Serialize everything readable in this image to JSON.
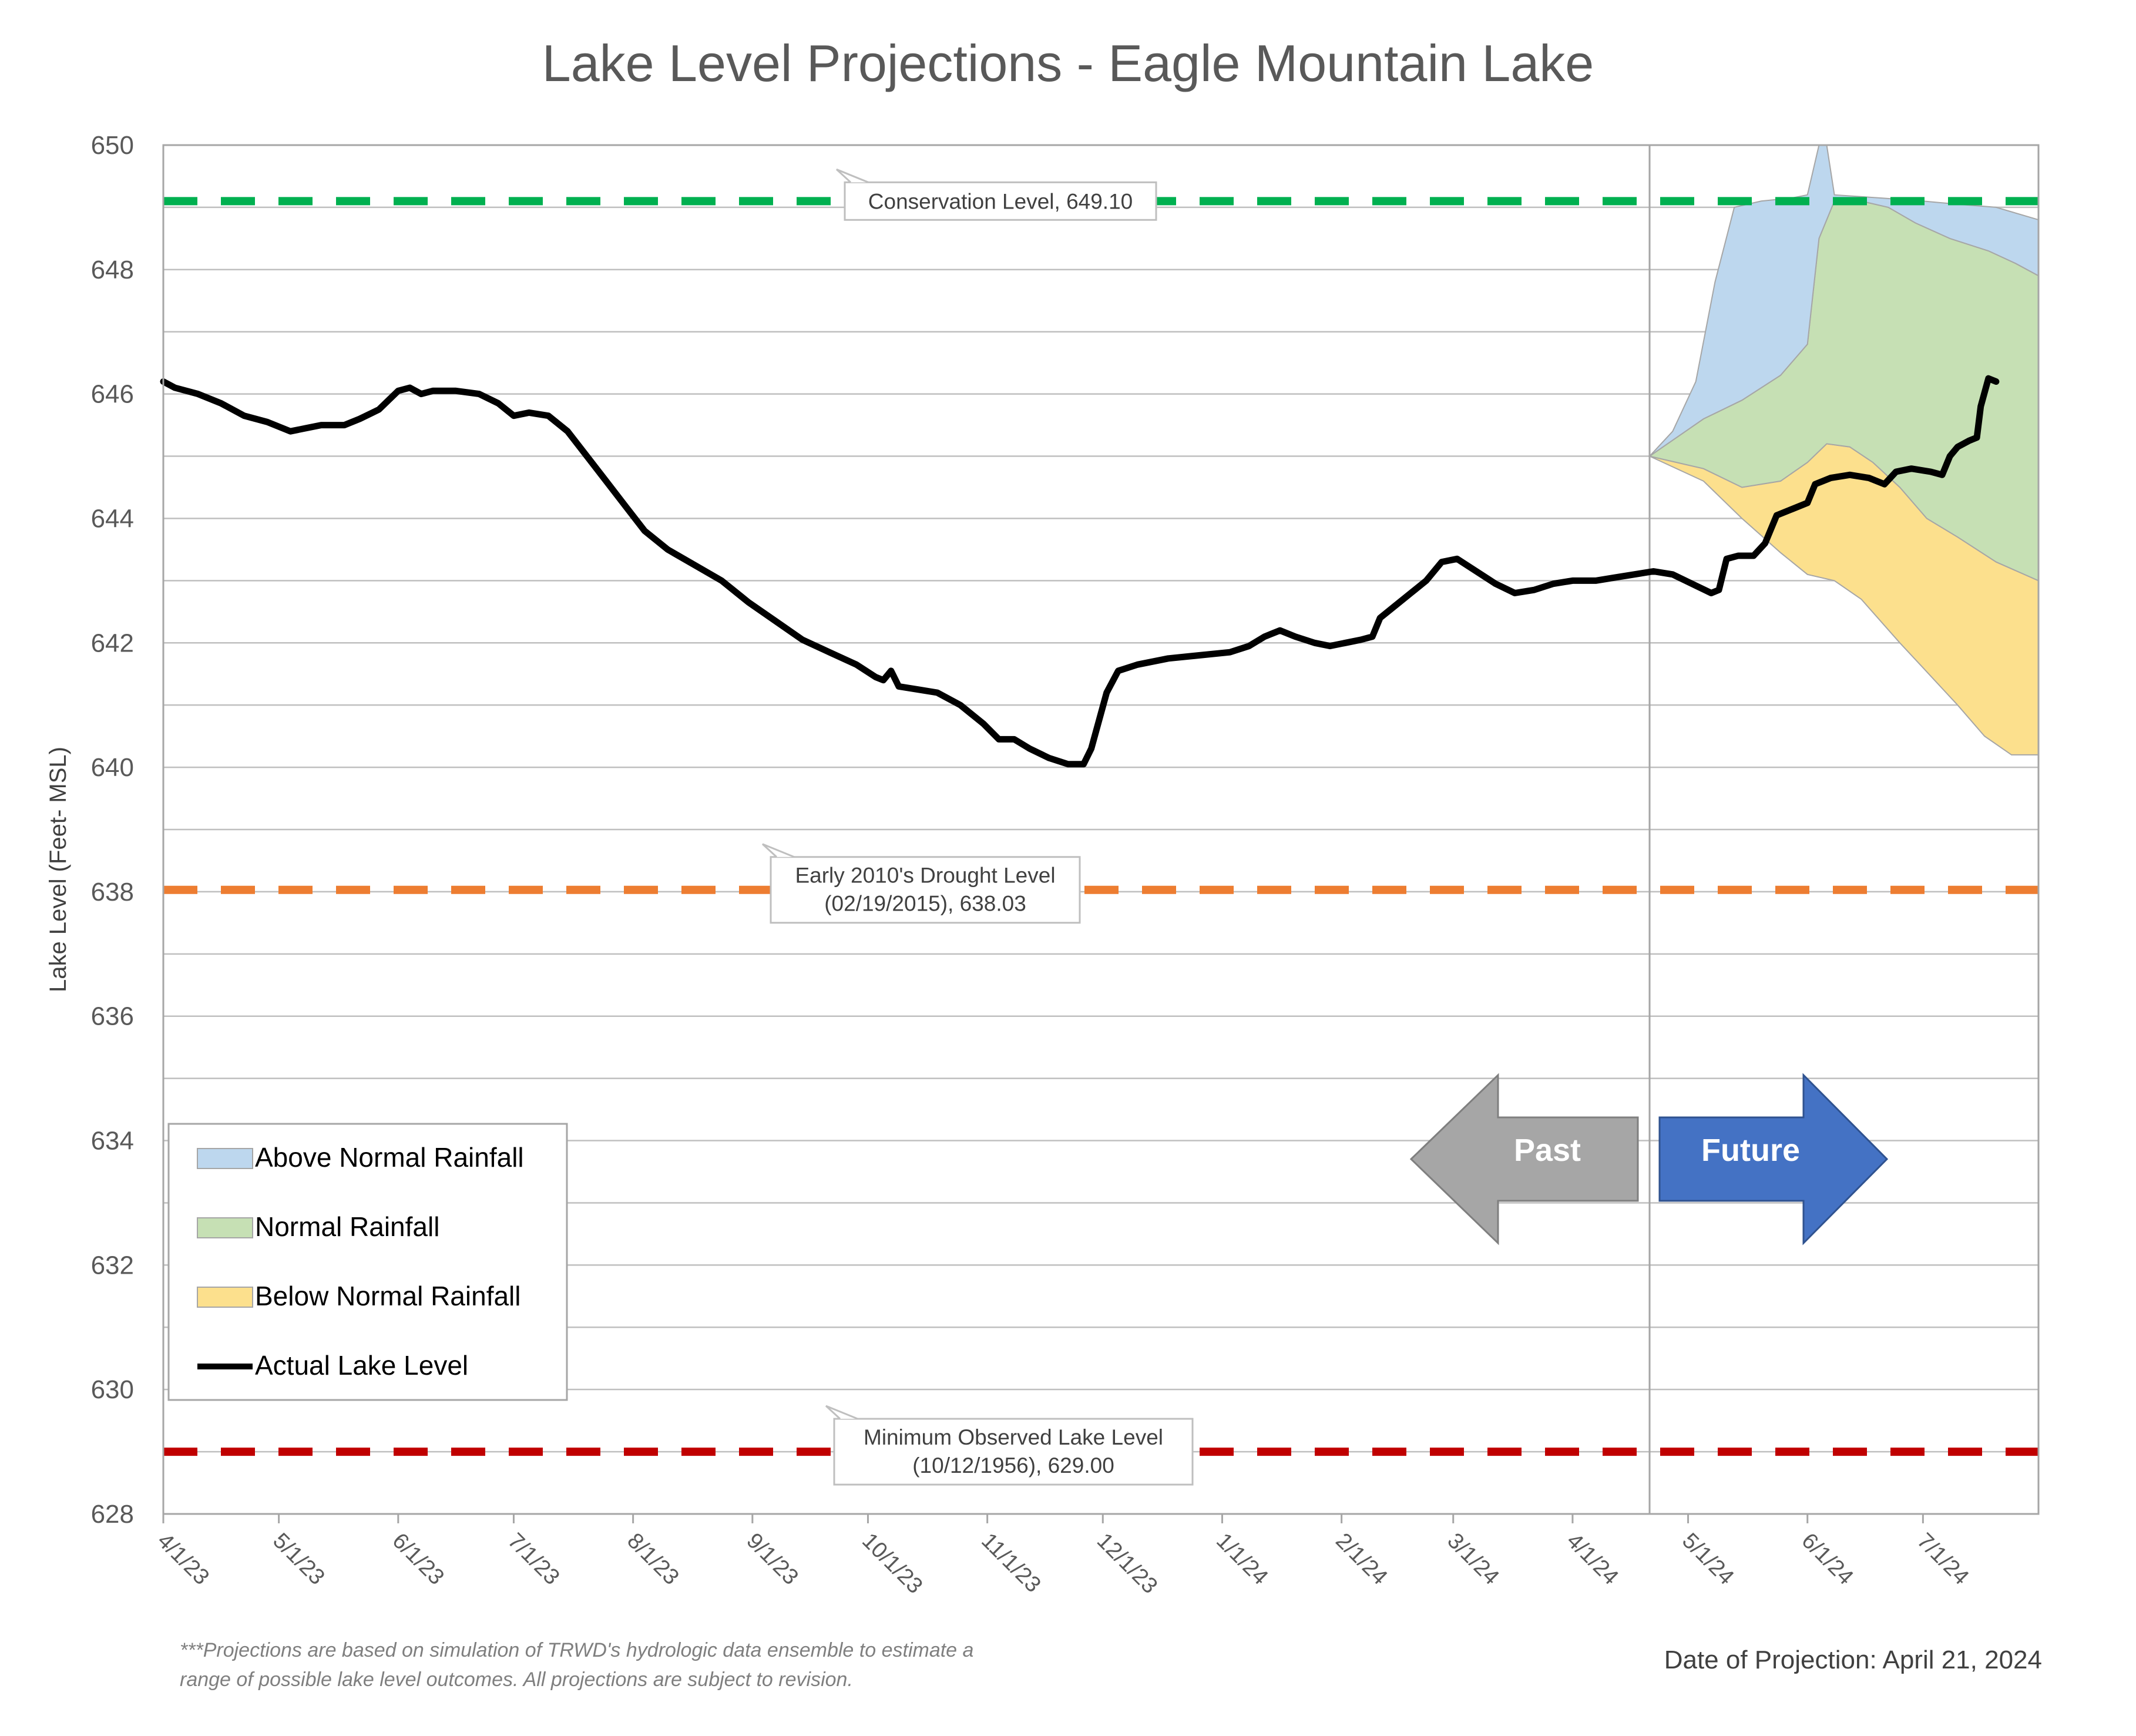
{
  "chart_data": {
    "type": "area",
    "title": "Lake Level Projections - Eagle Mountain Lake",
    "ylabel": "Lake Level (Feet- MSL)",
    "xlabel": "",
    "ylim": [
      628,
      650
    ],
    "y_ticks": [
      "628",
      "630",
      "632",
      "634",
      "636",
      "638",
      "640",
      "642",
      "644",
      "646",
      "648",
      "650"
    ],
    "x_range": [
      "2023-04-01",
      "2024-07-31"
    ],
    "x_ticks": [
      {
        "label": "4/1/23",
        "date": "2023-04-01"
      },
      {
        "label": "5/1/23",
        "date": "2023-05-01"
      },
      {
        "label": "6/1/23",
        "date": "2023-06-01"
      },
      {
        "label": "7/1/23",
        "date": "2023-07-01"
      },
      {
        "label": "8/1/23",
        "date": "2023-08-01"
      },
      {
        "label": "9/1/23",
        "date": "2023-09-01"
      },
      {
        "label": "10/1/23",
        "date": "2023-10-01"
      },
      {
        "label": "11/1/23",
        "date": "2023-11-01"
      },
      {
        "label": "12/1/23",
        "date": "2023-12-01"
      },
      {
        "label": "1/1/24",
        "date": "2024-01-01"
      },
      {
        "label": "2/1/24",
        "date": "2024-02-01"
      },
      {
        "label": "3/1/24",
        "date": "2024-03-01"
      },
      {
        "label": "4/1/24",
        "date": "2024-04-01"
      },
      {
        "label": "5/1/24",
        "date": "2024-05-01"
      },
      {
        "label": "6/1/24",
        "date": "2024-06-01"
      },
      {
        "label": "7/1/24",
        "date": "2024-07-01"
      }
    ],
    "grid": true,
    "grid_step": 1,
    "legend_position": "lower-left",
    "reference_lines": [
      {
        "name": "Conservation Level",
        "value": 649.1,
        "color": "#00b050",
        "label_lines": [
          "Conservation Level, 649.10"
        ]
      },
      {
        "name": "Early 2010's Drought Level",
        "value": 638.03,
        "color": "#ed7d31",
        "label_lines": [
          "Early 2010's Drought Level",
          "(02/19/2015), 638.03"
        ]
      },
      {
        "name": "Minimum Observed Lake Level",
        "value": 629.0,
        "color": "#c00000",
        "label_lines": [
          "Minimum Observed Lake Level",
          "(10/12/1956), 629.00"
        ]
      }
    ],
    "projection_start": "2024-04-21",
    "series": [
      {
        "name": "Actual Lake Level",
        "kind": "line",
        "color": "#000000",
        "points": [
          [
            "2023-04-01",
            646.2
          ],
          [
            "2023-04-04",
            646.1
          ],
          [
            "2023-04-10",
            646.0
          ],
          [
            "2023-04-16",
            645.85
          ],
          [
            "2023-04-22",
            645.65
          ],
          [
            "2023-04-28",
            645.55
          ],
          [
            "2023-05-04",
            645.4
          ],
          [
            "2023-05-08",
            645.45
          ],
          [
            "2023-05-12",
            645.5
          ],
          [
            "2023-05-18",
            645.5
          ],
          [
            "2023-05-22",
            645.6
          ],
          [
            "2023-05-27",
            645.75
          ],
          [
            "2023-06-01",
            646.05
          ],
          [
            "2023-06-04",
            646.1
          ],
          [
            "2023-06-07",
            646.0
          ],
          [
            "2023-06-10",
            646.05
          ],
          [
            "2023-06-16",
            646.05
          ],
          [
            "2023-06-22",
            646.0
          ],
          [
            "2023-06-27",
            645.85
          ],
          [
            "2023-07-01",
            645.65
          ],
          [
            "2023-07-05",
            645.7
          ],
          [
            "2023-07-10",
            645.65
          ],
          [
            "2023-07-15",
            645.4
          ],
          [
            "2023-07-20",
            645.0
          ],
          [
            "2023-07-25",
            644.6
          ],
          [
            "2023-07-30",
            644.2
          ],
          [
            "2023-08-04",
            643.8
          ],
          [
            "2023-08-10",
            643.5
          ],
          [
            "2023-08-17",
            643.25
          ],
          [
            "2023-08-24",
            643.0
          ],
          [
            "2023-08-31",
            642.65
          ],
          [
            "2023-09-07",
            642.35
          ],
          [
            "2023-09-14",
            642.05
          ],
          [
            "2023-09-21",
            641.85
          ],
          [
            "2023-09-28",
            641.65
          ],
          [
            "2023-10-03",
            641.45
          ],
          [
            "2023-10-05",
            641.4
          ],
          [
            "2023-10-07",
            641.55
          ],
          [
            "2023-10-09",
            641.3
          ],
          [
            "2023-10-14",
            641.25
          ],
          [
            "2023-10-19",
            641.2
          ],
          [
            "2023-10-25",
            641.0
          ],
          [
            "2023-10-31",
            640.7
          ],
          [
            "2023-11-04",
            640.45
          ],
          [
            "2023-11-08",
            640.45
          ],
          [
            "2023-11-12",
            640.3
          ],
          [
            "2023-11-17",
            640.15
          ],
          [
            "2023-11-22",
            640.05
          ],
          [
            "2023-11-26",
            640.05
          ],
          [
            "2023-11-28",
            640.3
          ],
          [
            "2023-11-30",
            640.75
          ],
          [
            "2023-12-02",
            641.2
          ],
          [
            "2023-12-05",
            641.55
          ],
          [
            "2023-12-10",
            641.65
          ],
          [
            "2023-12-18",
            641.75
          ],
          [
            "2023-12-26",
            641.8
          ],
          [
            "2024-01-03",
            641.85
          ],
          [
            "2024-01-08",
            641.95
          ],
          [
            "2024-01-12",
            642.1
          ],
          [
            "2024-01-16",
            642.2
          ],
          [
            "2024-01-20",
            642.1
          ],
          [
            "2024-01-25",
            642.0
          ],
          [
            "2024-01-29",
            641.95
          ],
          [
            "2024-02-02",
            642.0
          ],
          [
            "2024-02-06",
            642.05
          ],
          [
            "2024-02-09",
            642.1
          ],
          [
            "2024-02-11",
            642.4
          ],
          [
            "2024-02-15",
            642.6
          ],
          [
            "2024-02-19",
            642.8
          ],
          [
            "2024-02-23",
            643.0
          ],
          [
            "2024-02-27",
            643.3
          ],
          [
            "2024-03-02",
            643.35
          ],
          [
            "2024-03-07",
            643.15
          ],
          [
            "2024-03-12",
            642.95
          ],
          [
            "2024-03-17",
            642.8
          ],
          [
            "2024-03-22",
            642.85
          ],
          [
            "2024-03-27",
            642.95
          ],
          [
            "2024-04-01",
            643.0
          ],
          [
            "2024-04-07",
            643.0
          ],
          [
            "2024-04-12",
            643.05
          ],
          [
            "2024-04-17",
            643.1
          ],
          [
            "2024-04-22",
            643.15
          ],
          [
            "2024-04-27",
            643.1
          ],
          [
            "2024-05-02",
            642.95
          ],
          [
            "2024-05-07",
            642.8
          ],
          [
            "2024-05-09",
            642.85
          ],
          [
            "2024-05-11",
            643.35
          ],
          [
            "2024-05-14",
            643.4
          ],
          [
            "2024-05-18",
            643.4
          ],
          [
            "2024-05-21",
            643.6
          ],
          [
            "2024-05-24",
            644.05
          ],
          [
            "2024-05-28",
            644.15
          ],
          [
            "2024-06-01",
            644.25
          ],
          [
            "2024-06-03",
            644.55
          ],
          [
            "2024-06-07",
            644.65
          ],
          [
            "2024-06-12",
            644.7
          ],
          [
            "2024-06-17",
            644.65
          ],
          [
            "2024-06-21",
            644.55
          ],
          [
            "2024-06-24",
            644.75
          ],
          [
            "2024-06-28",
            644.8
          ],
          [
            "2024-07-03",
            644.75
          ],
          [
            "2024-07-06",
            644.7
          ],
          [
            "2024-07-08",
            645.0
          ],
          [
            "2024-07-10",
            645.15
          ],
          [
            "2024-07-13",
            645.25
          ],
          [
            "2024-07-15",
            645.3
          ],
          [
            "2024-07-16",
            645.8
          ],
          [
            "2024-07-18",
            646.25
          ],
          [
            "2024-07-20",
            646.2
          ]
        ]
      },
      {
        "name": "Below Normal Rainfall",
        "kind": "band",
        "color": "#fce08d",
        "lower": [
          [
            "2024-04-21",
            645.0
          ],
          [
            "2024-05-05",
            644.6
          ],
          [
            "2024-05-15",
            644.0
          ],
          [
            "2024-05-25",
            643.45
          ],
          [
            "2024-06-01",
            643.1
          ],
          [
            "2024-06-08",
            643.0
          ],
          [
            "2024-06-15",
            642.7
          ],
          [
            "2024-06-25",
            642.0
          ],
          [
            "2024-07-01",
            641.6
          ],
          [
            "2024-07-10",
            641.0
          ],
          [
            "2024-07-17",
            640.5
          ],
          [
            "2024-07-24",
            640.2
          ],
          [
            "2024-07-31",
            640.2
          ]
        ],
        "upper": [
          [
            "2024-04-21",
            645.0
          ],
          [
            "2024-05-05",
            644.8
          ],
          [
            "2024-05-15",
            644.5
          ],
          [
            "2024-05-25",
            644.6
          ],
          [
            "2024-06-01",
            644.9
          ],
          [
            "2024-06-06",
            645.2
          ],
          [
            "2024-06-12",
            645.15
          ],
          [
            "2024-06-18",
            644.9
          ],
          [
            "2024-06-25",
            644.5
          ],
          [
            "2024-07-02",
            644.0
          ],
          [
            "2024-07-10",
            643.7
          ],
          [
            "2024-07-20",
            643.3
          ],
          [
            "2024-07-31",
            643.0
          ]
        ]
      },
      {
        "name": "Normal Rainfall",
        "kind": "band",
        "color": "#c6e0b4",
        "lower": [
          [
            "2024-04-21",
            645.0
          ],
          [
            "2024-05-05",
            644.8
          ],
          [
            "2024-05-15",
            644.5
          ],
          [
            "2024-05-25",
            644.6
          ],
          [
            "2024-06-01",
            644.9
          ],
          [
            "2024-06-06",
            645.2
          ],
          [
            "2024-06-12",
            645.15
          ],
          [
            "2024-06-18",
            644.9
          ],
          [
            "2024-06-25",
            644.5
          ],
          [
            "2024-07-02",
            644.0
          ],
          [
            "2024-07-10",
            643.7
          ],
          [
            "2024-07-20",
            643.3
          ],
          [
            "2024-07-31",
            643.0
          ]
        ],
        "upper": [
          [
            "2024-04-21",
            645.0
          ],
          [
            "2024-05-05",
            645.6
          ],
          [
            "2024-05-15",
            645.9
          ],
          [
            "2024-05-25",
            646.3
          ],
          [
            "2024-06-01",
            646.8
          ],
          [
            "2024-06-04",
            648.5
          ],
          [
            "2024-06-08",
            649.1
          ],
          [
            "2024-06-15",
            649.1
          ],
          [
            "2024-06-22",
            649.0
          ],
          [
            "2024-06-29",
            648.75
          ],
          [
            "2024-07-08",
            648.5
          ],
          [
            "2024-07-18",
            648.3
          ],
          [
            "2024-07-25",
            648.1
          ],
          [
            "2024-07-31",
            647.9
          ]
        ]
      },
      {
        "name": "Above Normal Rainfall",
        "kind": "band",
        "color": "#bdd7ee",
        "lower": [
          [
            "2024-04-21",
            645.0
          ],
          [
            "2024-05-05",
            645.6
          ],
          [
            "2024-05-15",
            645.9
          ],
          [
            "2024-05-25",
            646.3
          ],
          [
            "2024-06-01",
            646.8
          ],
          [
            "2024-06-04",
            648.5
          ],
          [
            "2024-06-08",
            649.1
          ],
          [
            "2024-06-15",
            649.1
          ],
          [
            "2024-06-22",
            649.0
          ],
          [
            "2024-06-29",
            648.75
          ],
          [
            "2024-07-08",
            648.5
          ],
          [
            "2024-07-18",
            648.3
          ],
          [
            "2024-07-25",
            648.1
          ],
          [
            "2024-07-31",
            647.9
          ]
        ],
        "upper": [
          [
            "2024-04-21",
            645.0
          ],
          [
            "2024-04-27",
            645.4
          ],
          [
            "2024-05-03",
            646.2
          ],
          [
            "2024-05-08",
            647.8
          ],
          [
            "2024-05-13",
            649.0
          ],
          [
            "2024-05-20",
            649.1
          ],
          [
            "2024-05-28",
            649.15
          ],
          [
            "2024-06-01",
            649.2
          ],
          [
            "2024-06-04",
            650.0
          ],
          [
            "2024-06-06",
            650.0
          ],
          [
            "2024-06-08",
            649.2
          ],
          [
            "2024-06-20",
            649.15
          ],
          [
            "2024-07-01",
            649.1
          ],
          [
            "2024-07-10",
            649.05
          ],
          [
            "2024-07-20",
            649.0
          ],
          [
            "2024-07-31",
            648.8
          ]
        ]
      }
    ]
  },
  "legend": [
    {
      "label": "Above Normal Rainfall",
      "kind": "swatch",
      "color": "#bdd7ee"
    },
    {
      "label": "Normal Rainfall",
      "kind": "swatch",
      "color": "#c6e0b4"
    },
    {
      "label": "Below Normal Rainfall",
      "kind": "swatch",
      "color": "#fce08d"
    },
    {
      "label": "Actual Lake Level",
      "kind": "line",
      "color": "#000000"
    }
  ],
  "arrows": {
    "past": {
      "label": "Past",
      "color": "#a6a6a6"
    },
    "future": {
      "label": "Future",
      "color": "#4472c4"
    }
  },
  "footnote": [
    "***Projections are based on simulation of TRWD's hydrologic data ensemble to estimate a",
    "range of possible lake level outcomes.  All projections are subject to revision."
  ],
  "projection_date": "Date of Projection: April 21, 2024"
}
